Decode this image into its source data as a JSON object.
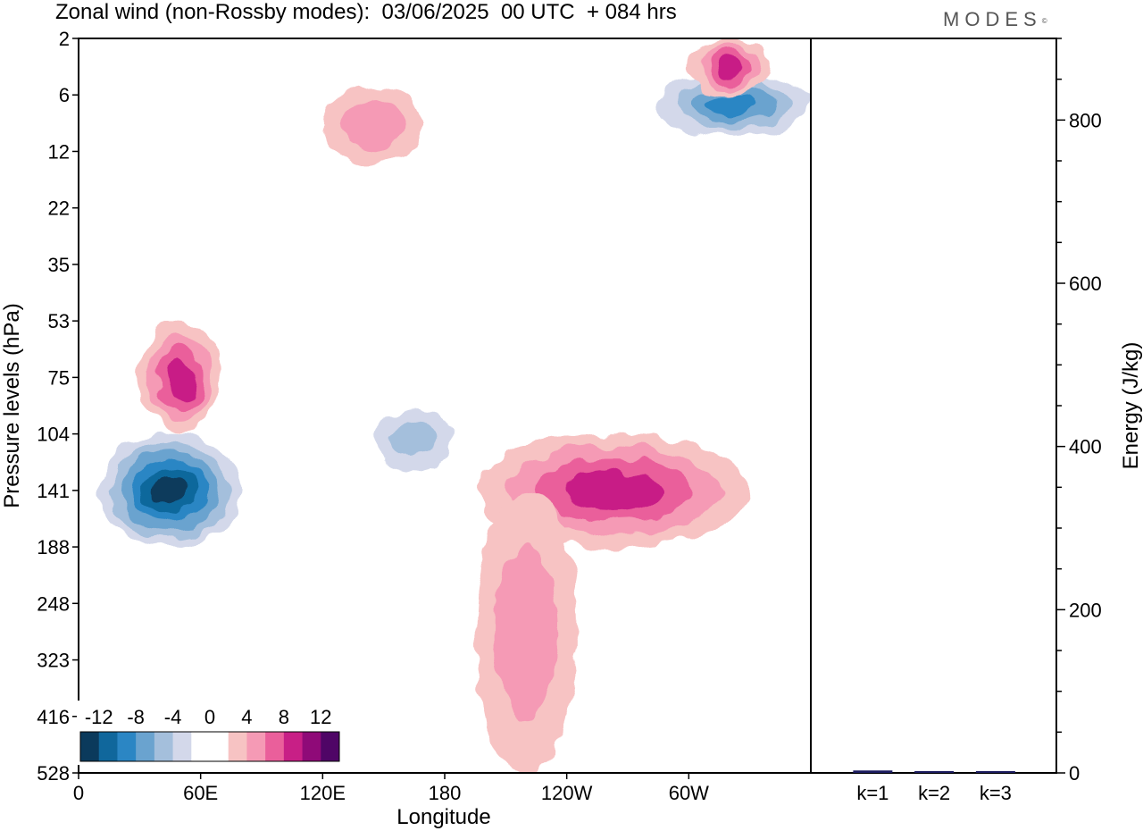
{
  "title": "Zonal wind (non-Rossby modes):  03/06/2025  00 UTC  + 084 hrs",
  "logo": "MODES",
  "logo_mark": "©",
  "chart_data": [
    {
      "type": "heatmap",
      "title": "Zonal wind (non-Rossby modes):  03/06/2025  00 UTC  + 084 hrs",
      "xlabel": "Longitude",
      "ylabel": "Pressure levels (hPa)",
      "x_ticks": [
        "0",
        "60E",
        "120E",
        "180",
        "120W",
        "60W"
      ],
      "y_ticks": [
        "2",
        "6",
        "12",
        "22",
        "35",
        "53",
        "75",
        "104",
        "141",
        "188",
        "248",
        "323",
        "416",
        "528"
      ],
      "colorbar": {
        "placement": "bottom-left",
        "labels": [
          "-12",
          "-8",
          "-4",
          "0",
          "4",
          "8",
          "12"
        ],
        "colors": [
          "#0b3a5c",
          "#10679c",
          "#2b86c4",
          "#6aa3cf",
          "#a4bfdc",
          "#d3d8ea",
          "#ffffff",
          "#ffffff",
          "#f7c3c3",
          "#f59ab5",
          "#ea5f9b",
          "#c81f86",
          "#8f0a78",
          "#4f0566"
        ]
      },
      "features": [
        {
          "sign": "negative",
          "lon_range": [
            10,
            80
          ],
          "level_range": [
            104,
            188
          ],
          "peak": -12
        },
        {
          "sign": "positive",
          "lon_range": [
            30,
            70
          ],
          "level_range": [
            53,
            104
          ],
          "peak": 8
        },
        {
          "sign": "negative",
          "lon_range": [
            145,
            185
          ],
          "level_range": [
            90,
            125
          ],
          "peak": -4
        },
        {
          "sign": "positive",
          "lon_range": [
            195,
            330
          ],
          "level_range": [
            104,
            188
          ],
          "peak": 8
        },
        {
          "sign": "positive",
          "lon_range": [
            195,
            245
          ],
          "level_range": [
            141,
            528
          ],
          "peak": 4
        },
        {
          "sign": "negative",
          "lon_range": [
            285,
            360
          ],
          "level_range": [
            4,
            10
          ],
          "peak": -8
        },
        {
          "sign": "positive",
          "lon_range": [
            300,
            340
          ],
          "level_range": [
            2,
            6
          ],
          "peak": 8
        },
        {
          "sign": "positive",
          "lon_range": [
            120,
            170
          ],
          "level_range": [
            5,
            14
          ],
          "peak": 4
        }
      ]
    },
    {
      "type": "bar",
      "ylabel": "Energy (J/kg)",
      "categories": [
        "k=1",
        "k=2",
        "k=3"
      ],
      "values": [
        3,
        1.5,
        1
      ],
      "ylim": [
        0,
        900
      ],
      "y_ticks": [
        "0",
        "200",
        "400",
        "600",
        "800"
      ]
    }
  ]
}
